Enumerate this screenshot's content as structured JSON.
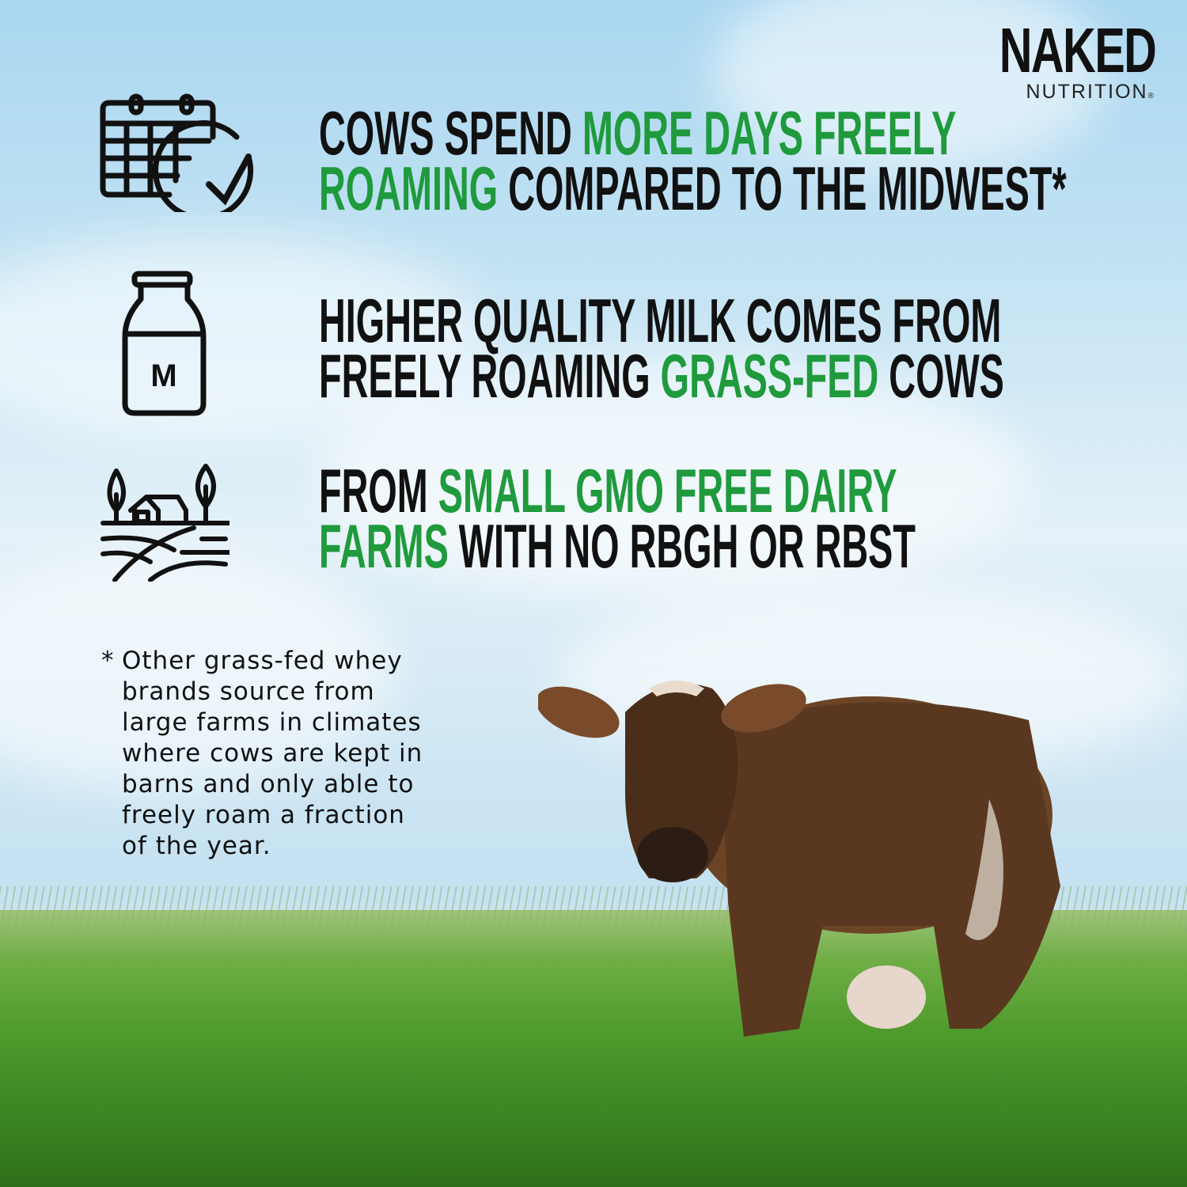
{
  "logo": {
    "line1": "NAKED",
    "line2": "NUTRITION",
    "mark": "®"
  },
  "features": [
    {
      "icon": "calendar-check-icon",
      "lines": [
        [
          {
            "t": "COWS SPEND ",
            "green": false
          },
          {
            "t": "MORE DAYS FREELY",
            "green": true
          }
        ],
        [
          {
            "t": "ROAMING",
            "green": true
          },
          {
            "t": " COMPARED TO THE MIDWEST*",
            "green": false
          }
        ]
      ]
    },
    {
      "icon": "milk-bottle-icon",
      "label": "M",
      "lines": [
        [
          {
            "t": "HIGHER QUALITY MILK COMES FROM",
            "green": false
          }
        ],
        [
          {
            "t": "FREELY ROAMING ",
            "green": false
          },
          {
            "t": "GRASS-FED",
            "green": true
          },
          {
            "t": " COWS",
            "green": false
          }
        ]
      ]
    },
    {
      "icon": "farm-icon",
      "lines": [
        [
          {
            "t": "FROM ",
            "green": false
          },
          {
            "t": "SMALL GMO FREE DAIRY",
            "green": true
          }
        ],
        [
          {
            "t": "FARMS",
            "green": true
          },
          {
            "t": " WITH NO RBGH OR RBST",
            "green": false
          }
        ]
      ]
    }
  ],
  "footnote": {
    "asterisk": "*",
    "lines": [
      "Other grass-fed whey",
      "brands source from",
      "large farms in climates",
      "where cows are kept in",
      "barns and only able to",
      "freely roam a fraction",
      "of the year."
    ]
  },
  "colors": {
    "accent_green": "#1f9a3c",
    "text": "#111111"
  }
}
